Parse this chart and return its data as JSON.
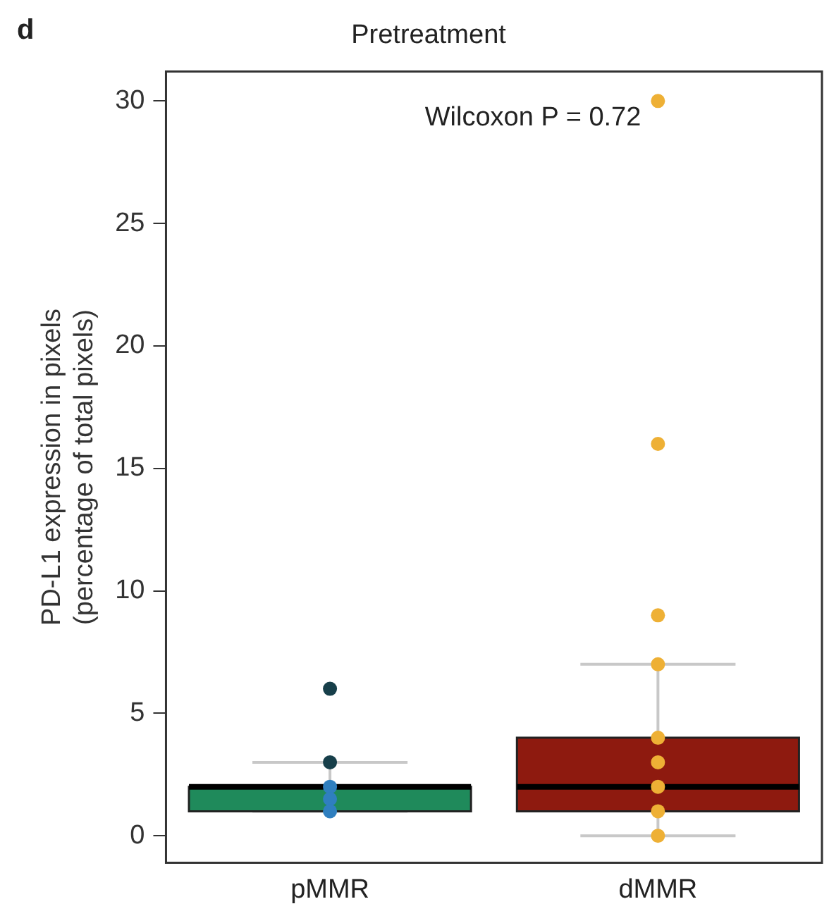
{
  "chart_data": {
    "type": "box",
    "title": "Pretreatment",
    "ylabel": "PD-L1 expression in pixels\n(percentage of total pixels)",
    "categories": [
      "pMMR",
      "dMMR"
    ],
    "colors": [
      "#1f8a5b",
      "#8e1a0f"
    ],
    "boxes": [
      {
        "low": 1,
        "q1": 1,
        "median": 2,
        "q3": 2,
        "high": 3
      },
      {
        "low": 0,
        "q1": 1,
        "median": 2,
        "q3": 4,
        "high": 7
      }
    ],
    "series": [
      {
        "type": "scatter",
        "x": [
          "pMMR",
          "pMMR",
          "pMMR",
          "pMMR",
          "pMMR"
        ],
        "values": [
          6,
          3,
          2,
          1.5,
          1
        ],
        "colors": [
          "#173f4a",
          "#173f4a",
          "#2f7fbf",
          "#2f7fbf",
          "#2f7fbf"
        ]
      },
      {
        "type": "scatter",
        "x": [
          "dMMR",
          "dMMR",
          "dMMR",
          "dMMR",
          "dMMR",
          "dMMR",
          "dMMR",
          "dMMR",
          "dMMR"
        ],
        "values": [
          30,
          16,
          9,
          7,
          4,
          3,
          2,
          1,
          0
        ],
        "colors": [
          "#eeb035",
          "#eeb035",
          "#eeb035",
          "#eeb035",
          "#eeb035",
          "#eeb035",
          "#eeb035",
          "#eeb035",
          "#eeb035"
        ]
      }
    ],
    "ylim": [
      -1.1,
      31.2
    ],
    "yticks": [
      0,
      5,
      10,
      15,
      20,
      25,
      30
    ],
    "grid": false,
    "legend": false,
    "marker": "circle",
    "annotations": [
      "d",
      {
        "text": "Wilcoxon P = 0.72",
        "x": "dMMR",
        "y": 30
      }
    ]
  }
}
